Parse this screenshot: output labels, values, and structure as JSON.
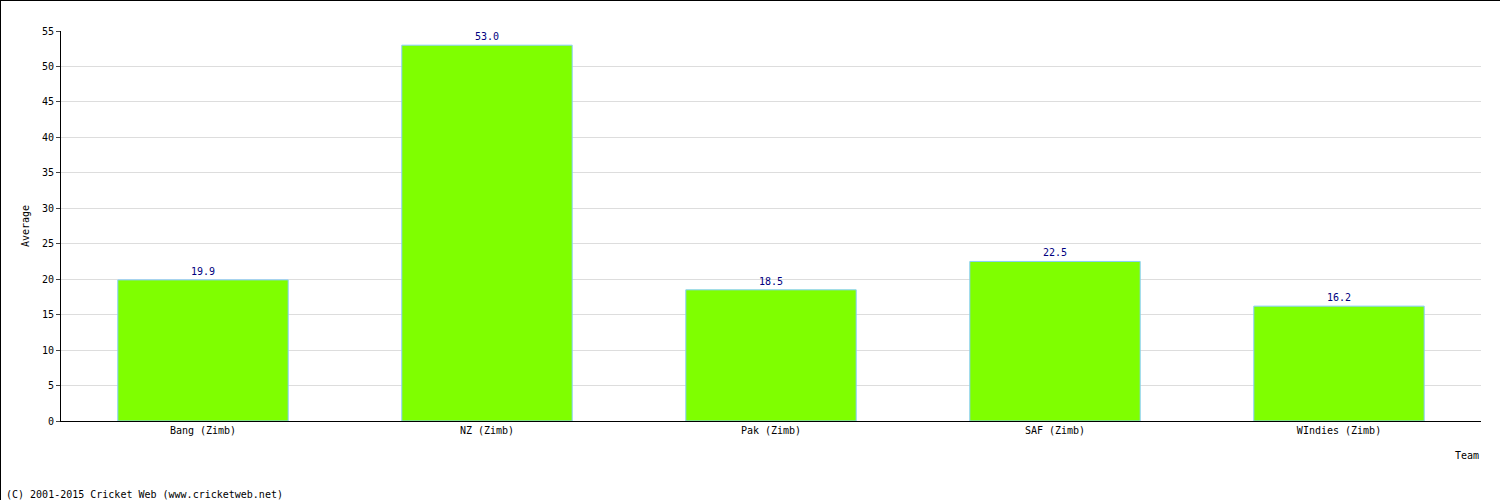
{
  "chart_data": {
    "type": "bar",
    "categories": [
      "Bang (Zimb)",
      "NZ (Zimb)",
      "Pak (Zimb)",
      "SAF (Zimb)",
      "WIndies (Zimb)"
    ],
    "values": [
      19.9,
      53.0,
      18.5,
      22.5,
      16.2
    ],
    "value_labels": [
      "19.9",
      "53.0",
      "18.5",
      "22.5",
      "16.2"
    ],
    "data_labels": true,
    "color": "#7fff00",
    "x_label": "Team",
    "y_label": "Average",
    "annotations": [
      "(C) 2001-2015 Cricket Web (www.cricketweb.net)"
    ],
    "ylim": [
      0,
      55
    ],
    "yticks": [
      0,
      5,
      10,
      15,
      20,
      25,
      30,
      35,
      40,
      45,
      50,
      55
    ],
    "grid": true
  }
}
